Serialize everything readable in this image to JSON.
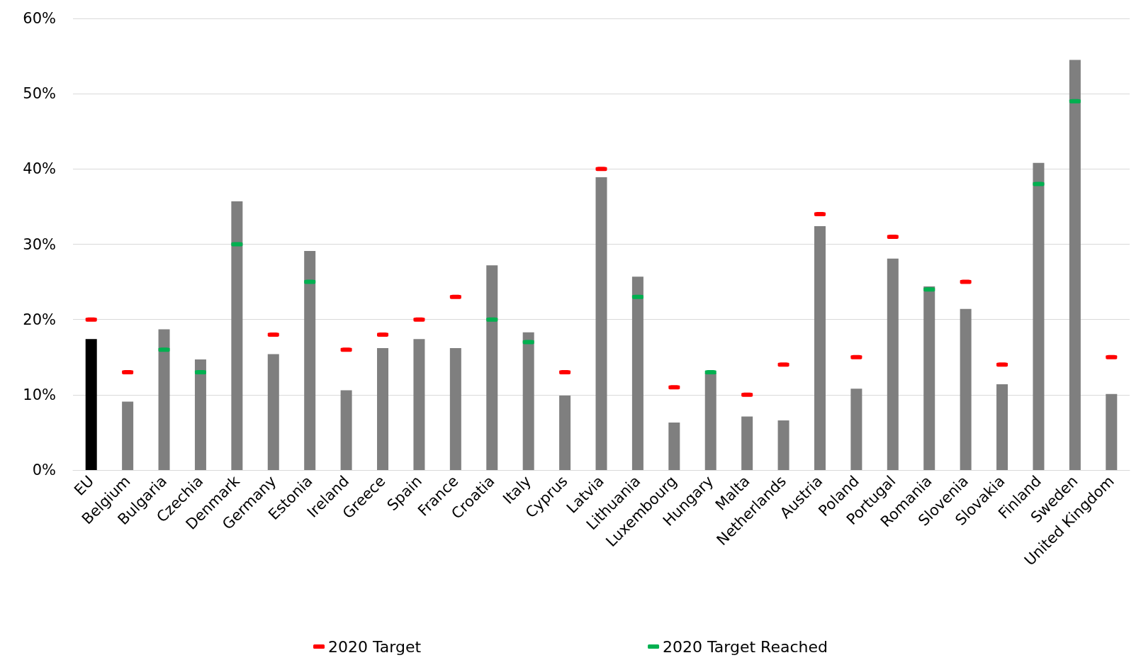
{
  "chart_data": {
    "type": "bar",
    "categories": [
      "EU",
      "Belgium",
      "Bulgaria",
      "Czechia",
      "Denmark",
      "Germany",
      "Estonia",
      "Ireland",
      "Greece",
      "Spain",
      "France",
      "Croatia",
      "Italy",
      "Cyprus",
      "Latvia",
      "Lithuania",
      "Luxembourg",
      "Hungary",
      "Malta",
      "Netherlands",
      "Austria",
      "Poland",
      "Portugal",
      "Romania",
      "Slovenia",
      "Slovakia",
      "Finland",
      "Sweden",
      "United Kingdom"
    ],
    "series": [
      {
        "colors": [
          "#000000",
          "#7f7f7f",
          "#7f7f7f",
          "#7f7f7f",
          "#7f7f7f",
          "#7f7f7f",
          "#7f7f7f",
          "#7f7f7f",
          "#7f7f7f",
          "#7f7f7f",
          "#7f7f7f",
          "#7f7f7f",
          "#7f7f7f",
          "#7f7f7f",
          "#7f7f7f",
          "#7f7f7f",
          "#7f7f7f",
          "#7f7f7f",
          "#7f7f7f",
          "#7f7f7f",
          "#7f7f7f",
          "#7f7f7f",
          "#7f7f7f",
          "#7f7f7f",
          "#7f7f7f",
          "#7f7f7f",
          "#7f7f7f",
          "#7f7f7f",
          "#7f7f7f"
        ],
        "values": [
          17.4,
          9.1,
          18.7,
          14.7,
          35.7,
          15.4,
          29.1,
          10.6,
          16.2,
          17.4,
          16.2,
          27.2,
          18.3,
          9.9,
          38.9,
          25.7,
          6.3,
          12.9,
          7.1,
          6.6,
          32.4,
          10.8,
          28.1,
          24.4,
          21.4,
          11.4,
          40.8,
          54.5,
          10.1
        ]
      },
      {
        "type": "scatter",
        "name": "2020 Target",
        "color": "#ff0000",
        "values": [
          20,
          13,
          null,
          null,
          null,
          18,
          null,
          16,
          18,
          20,
          23,
          null,
          null,
          13,
          40,
          null,
          11,
          null,
          10,
          14,
          34,
          15,
          31,
          null,
          25,
          14,
          null,
          null,
          15
        ]
      },
      {
        "type": "scatter",
        "name": "2020 Target Reached",
        "color": "#00b050",
        "values": [
          null,
          null,
          16,
          13,
          30,
          null,
          25,
          null,
          null,
          null,
          null,
          20,
          17,
          null,
          null,
          23,
          null,
          13,
          null,
          null,
          null,
          null,
          null,
          24,
          null,
          null,
          38,
          49,
          null
        ]
      }
    ],
    "ylim": [
      0,
      60
    ],
    "yticks": [
      {
        "value": 0,
        "label": "0%"
      },
      {
        "value": 10,
        "label": "10%"
      },
      {
        "value": 20,
        "label": "20%"
      },
      {
        "value": 30,
        "label": "30%"
      },
      {
        "value": 40,
        "label": "40%"
      },
      {
        "value": 50,
        "label": "50%"
      },
      {
        "value": 60,
        "label": "60%"
      }
    ],
    "grid": "y",
    "legend": "bottom"
  }
}
